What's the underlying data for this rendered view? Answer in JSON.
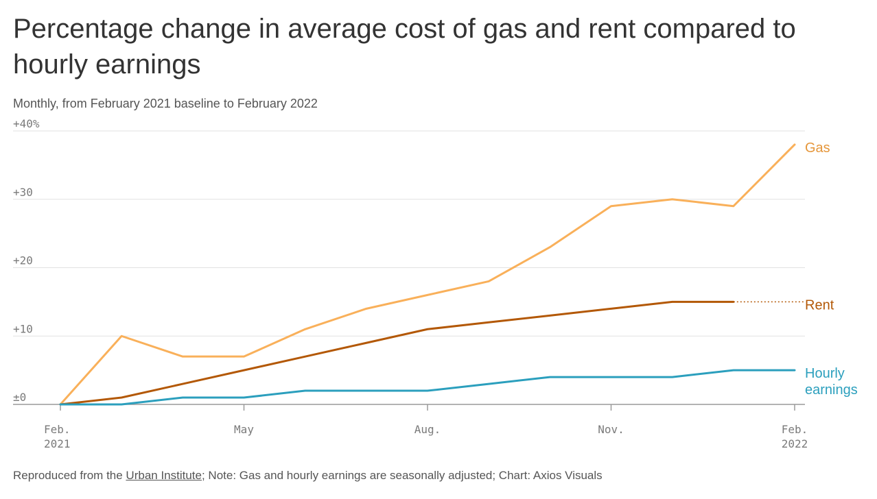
{
  "title": "Percentage change in average cost of gas and rent compared to hourly earnings",
  "subtitle": "Monthly, from February 2021 baseline to February 2022",
  "footer": {
    "prefix": "Reproduced from the ",
    "source_link": "Urban Institute",
    "suffix": "; Note: Gas and hourly earnings are seasonally adjusted; Chart: Axios Visuals"
  },
  "chart_data": {
    "type": "line",
    "title": "Percentage change in average cost of gas and rent compared to hourly earnings",
    "subtitle": "Monthly, from February 2021 baseline to February 2022",
    "x": [
      "2021-02",
      "2021-03",
      "2021-04",
      "2021-05",
      "2021-06",
      "2021-07",
      "2021-08",
      "2021-09",
      "2021-10",
      "2021-11",
      "2021-12",
      "2022-01",
      "2022-02"
    ],
    "x_ticks": [
      {
        "x": "2021-02",
        "lines": [
          "Feb.",
          "2021"
        ]
      },
      {
        "x": "2021-05",
        "lines": [
          "May"
        ]
      },
      {
        "x": "2021-08",
        "lines": [
          "Aug."
        ]
      },
      {
        "x": "2021-11",
        "lines": [
          "Nov."
        ]
      },
      {
        "x": "2022-02",
        "lines": [
          "Feb.",
          "2022"
        ]
      }
    ],
    "y_ticks": [
      {
        "value": 0,
        "label": "±0"
      },
      {
        "value": 10,
        "label": "+10"
      },
      {
        "value": 20,
        "label": "+20"
      },
      {
        "value": 30,
        "label": "+30"
      },
      {
        "value": 40,
        "label": "+40%"
      }
    ],
    "ylim": [
      0,
      40
    ],
    "xlabel": "",
    "ylabel": "",
    "grid": "horizontal",
    "legend": "direct labels at right end of lines",
    "series": [
      {
        "name": "Gas",
        "label_lines": [
          "Gas"
        ],
        "color": "#f9b05a",
        "label_color": "#e5963a",
        "values": [
          0,
          10,
          7,
          7,
          11,
          14,
          16,
          18,
          23,
          29,
          30,
          29,
          38
        ]
      },
      {
        "name": "Rent",
        "label_lines": [
          "Rent"
        ],
        "color": "#b35806",
        "label_color": "#b35806",
        "values": [
          0,
          1,
          3,
          5,
          7,
          9,
          11,
          12,
          13,
          14,
          15,
          15,
          null
        ],
        "dotted_extension_to_end": true
      },
      {
        "name": "Hourly earnings",
        "label_lines": [
          "Hourly",
          "earnings"
        ],
        "color": "#2b9fbd",
        "label_color": "#2b9fbd",
        "values": [
          0,
          0,
          1,
          1,
          2,
          2,
          2,
          3,
          4,
          4,
          4,
          5,
          5
        ]
      }
    ]
  }
}
